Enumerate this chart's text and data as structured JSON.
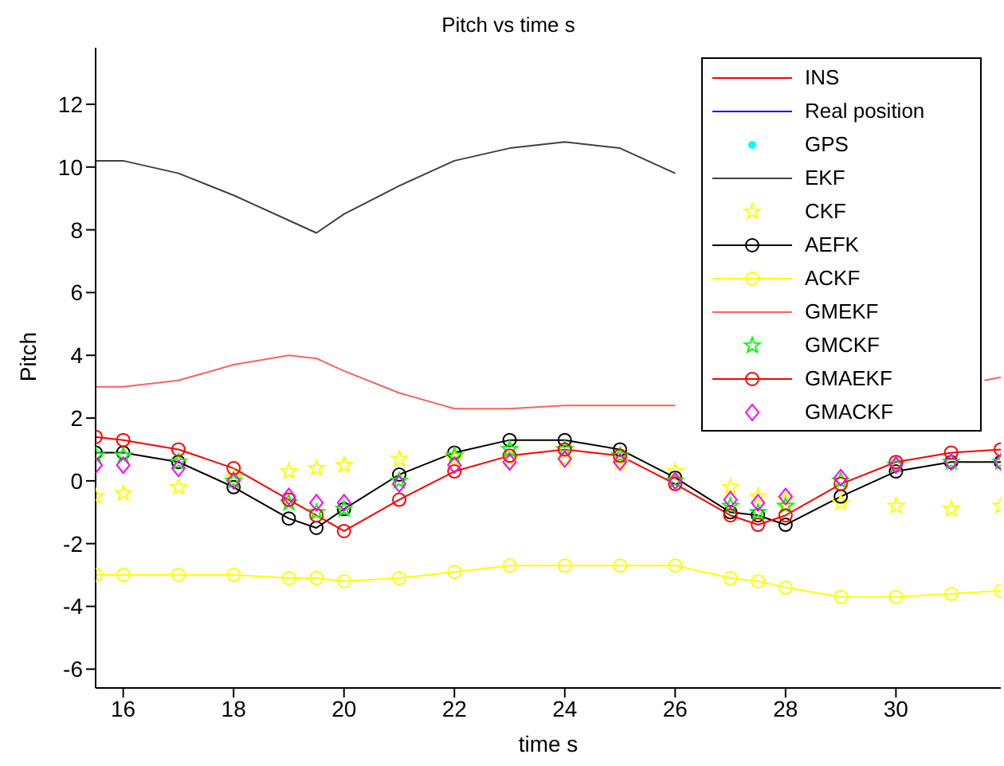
{
  "chart_data": {
    "type": "line",
    "title": "Pitch vs time s",
    "xlabel": "time s",
    "ylabel": "Pitch",
    "x": [
      15.5,
      16,
      17,
      18,
      19,
      19.5,
      20,
      21,
      22,
      23,
      24,
      25,
      26,
      27,
      27.5,
      28,
      29,
      30,
      31,
      31.9
    ],
    "xlim": [
      15.5,
      31.9
    ],
    "xticks": [
      16,
      18,
      20,
      22,
      24,
      26,
      28,
      30
    ],
    "ylim": [
      -6.6,
      13.8
    ],
    "yticks": [
      -6,
      -4,
      -2,
      0,
      2,
      4,
      6,
      8,
      10,
      12
    ],
    "grid": false,
    "legend": "top right",
    "series": [
      {
        "name": "INS",
        "marker": "none",
        "color": "#ff0000",
        "values": [
          null,
          null,
          null,
          null,
          null,
          null,
          null,
          null,
          null,
          null,
          null,
          null,
          null,
          null,
          null,
          null,
          null,
          null,
          null,
          null
        ]
      },
      {
        "name": "Real position",
        "marker": "none",
        "color": "#0000ff",
        "values": [
          null,
          null,
          null,
          null,
          null,
          null,
          null,
          null,
          null,
          null,
          null,
          null,
          null,
          null,
          null,
          null,
          null,
          null,
          null,
          null
        ]
      },
      {
        "name": "GPS",
        "type": "scatter",
        "marker": "circle",
        "color": "#00ffff",
        "values": [
          null,
          null,
          null,
          null,
          null,
          null,
          null,
          null,
          null,
          null,
          null,
          null,
          null,
          null,
          null,
          null,
          null,
          null,
          null,
          null
        ]
      },
      {
        "name": "EKF",
        "marker": "none",
        "color": "#404040",
        "values": [
          10.2,
          10.2,
          9.8,
          9.1,
          8.3,
          7.9,
          8.5,
          9.4,
          10.2,
          10.6,
          10.8,
          10.6,
          9.8,
          null,
          null,
          null,
          null,
          null,
          null,
          null
        ]
      },
      {
        "name": "CKF",
        "type": "scatter",
        "marker": "star",
        "color": "#ffff00",
        "values": [
          -0.5,
          -0.4,
          -0.2,
          0.1,
          0.3,
          0.4,
          0.5,
          0.7,
          0.7,
          0.7,
          0.7,
          0.6,
          0.3,
          -0.2,
          -0.5,
          -0.6,
          -0.7,
          -0.8,
          -0.9,
          -0.8
        ]
      },
      {
        "name": "AEFK",
        "marker": "circle",
        "color": "#000000",
        "values": [
          0.9,
          0.9,
          0.6,
          -0.2,
          -1.2,
          -1.5,
          -0.9,
          0.2,
          0.9,
          1.3,
          1.3,
          1.0,
          0.1,
          -1.0,
          -1.1,
          -1.4,
          -0.5,
          0.3,
          0.6,
          0.6
        ]
      },
      {
        "name": "ACKF",
        "marker": "circle",
        "color": "#ffff00",
        "values": [
          -3.0,
          -3.0,
          -3.0,
          -3.0,
          -3.1,
          -3.1,
          -3.2,
          -3.1,
          -2.9,
          -2.7,
          -2.7,
          -2.7,
          -2.7,
          -3.1,
          -3.2,
          -3.4,
          -3.7,
          -3.7,
          -3.6,
          -3.5
        ]
      },
      {
        "name": "GMEKF",
        "marker": "none",
        "color": "#ff6060",
        "x": [
          15.5,
          16,
          17,
          18,
          19,
          19.5,
          20,
          21,
          22,
          23,
          24,
          25,
          26,
          27,
          31.6,
          31.9
        ],
        "values": [
          3.0,
          3.0,
          3.2,
          3.7,
          4.0,
          3.9,
          3.5,
          2.8,
          2.3,
          2.3,
          2.4,
          2.4,
          2.4,
          null,
          3.2,
          3.3
        ]
      },
      {
        "name": "GMCKF",
        "type": "scatter",
        "marker": "star",
        "color": "#00ff00",
        "values": [
          0.8,
          0.8,
          0.6,
          0,
          -0.7,
          -1.0,
          -0.9,
          0,
          0.8,
          1.0,
          1.0,
          0.8,
          0,
          -0.8,
          -1.0,
          -0.8,
          0,
          0.5,
          0.6,
          0.6
        ]
      },
      {
        "name": "GMAEKF",
        "marker": "circle",
        "color": "#ff0000",
        "values": [
          1.4,
          1.3,
          1.0,
          0.4,
          -0.6,
          -1.1,
          -1.6,
          -0.6,
          0.3,
          0.8,
          1.0,
          0.8,
          -0.1,
          -1.1,
          -1.4,
          -1.1,
          -0.1,
          0.6,
          0.9,
          1.0
        ]
      },
      {
        "name": "GMACKF",
        "type": "scatter",
        "marker": "diamond",
        "color": "#ff00ff",
        "values": [
          0.5,
          0.5,
          0.4,
          0,
          -0.5,
          -0.7,
          -0.7,
          -0.1,
          0.5,
          0.6,
          0.7,
          0.6,
          0,
          -0.6,
          -0.7,
          -0.5,
          0.1,
          0.5,
          0.6,
          0.6
        ]
      }
    ]
  }
}
